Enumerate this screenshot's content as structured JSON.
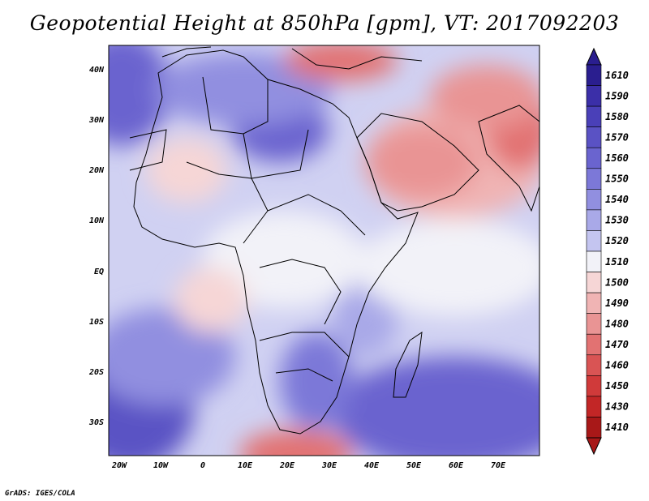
{
  "title": "Geopotential Height at 850hPa [gpm], VT: 2017092203",
  "footer": "GrADS: IGES/COLA",
  "map": {
    "lat_labels": [
      "40N",
      "30N",
      "20N",
      "10N",
      "EQ",
      "10S",
      "20S",
      "30S"
    ],
    "lon_labels": [
      "20W",
      "10W",
      "0",
      "10E",
      "20E",
      "30E",
      "40E",
      "50E",
      "60E",
      "70E"
    ]
  },
  "colorbar": {
    "levels": [
      "1610",
      "1590",
      "1580",
      "1570",
      "1560",
      "1550",
      "1540",
      "1530",
      "1520",
      "1510",
      "1500",
      "1490",
      "1480",
      "1470",
      "1460",
      "1450",
      "1430",
      "1410"
    ],
    "colors": [
      "#2a1e8f",
      "#3b2fa8",
      "#4a40b8",
      "#5a52c4",
      "#6a64cf",
      "#7c78d8",
      "#918fe0",
      "#a9a9e8",
      "#c4c5f0",
      "#f2f2f8",
      "#f6d6d6",
      "#f0b4b4",
      "#e99494",
      "#e27272",
      "#d95454",
      "#d03a3a",
      "#c22626",
      "#a81818"
    ]
  }
}
